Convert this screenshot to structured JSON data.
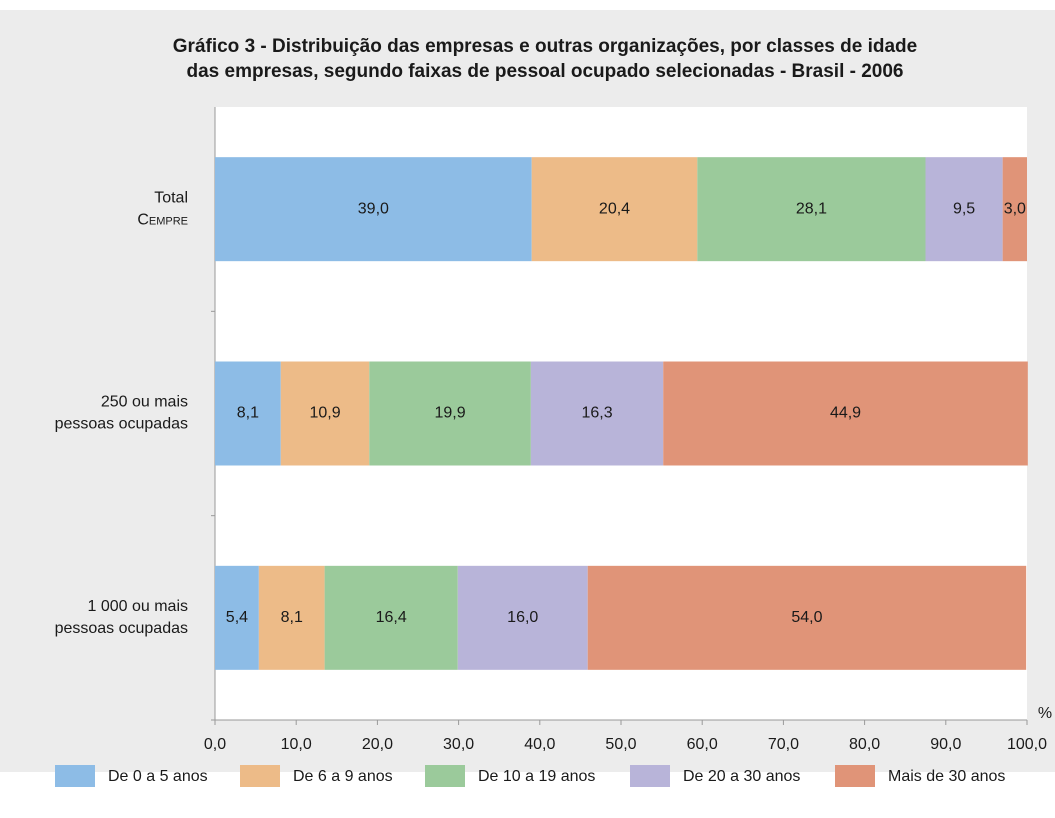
{
  "chart_data": {
    "type": "stacked-barh",
    "title": [
      "Gráfico 3 - Distribuição das empresas e outras organizações, por classes de idade",
      "das empresas, segundo faixas de pessoal ocupado selecionadas - Brasil - 2006"
    ],
    "categories": [
      [
        "Total",
        "Cempre"
      ],
      [
        "250  ou mais",
        "pessoas ocupadas"
      ],
      [
        "1 000  ou mais",
        "pessoas ocupadas"
      ]
    ],
    "series": [
      {
        "name": "De 0 a 5 anos",
        "color": "#8dbce6",
        "values": [
          39.0,
          8.1,
          5.4
        ],
        "value_labels": [
          "39,0",
          "8,1",
          "5,4"
        ]
      },
      {
        "name": "De 6 a 9 anos",
        "color": "#edbb88",
        "values": [
          20.4,
          10.9,
          8.1
        ],
        "value_labels": [
          "20,4",
          "10,9",
          "8,1"
        ]
      },
      {
        "name": "De 10 a 19 anos",
        "color": "#9bca9b",
        "values": [
          28.1,
          19.9,
          16.4
        ],
        "value_labels": [
          "28,1",
          "19,9",
          "16,4"
        ]
      },
      {
        "name": "De 20 a 30 anos",
        "color": "#b8b4d9",
        "values": [
          9.5,
          16.3,
          16.0
        ],
        "value_labels": [
          "9,5",
          "16,3",
          "16,0"
        ]
      },
      {
        "name": "Mais de 30 anos",
        "color": "#e09478",
        "values": [
          3.0,
          44.9,
          54.0
        ],
        "value_labels": [
          "3,0",
          "44,9",
          "54,0"
        ]
      }
    ],
    "xlabel": "%",
    "xlim": [
      0,
      100
    ],
    "xticks": [
      {
        "value": 0,
        "label": "0,0"
      },
      {
        "value": 10,
        "label": "10,0"
      },
      {
        "value": 20,
        "label": "20,0"
      },
      {
        "value": 30,
        "label": "30,0"
      },
      {
        "value": 40,
        "label": "40,0"
      },
      {
        "value": 50,
        "label": "50,0"
      },
      {
        "value": 60,
        "label": "60,0"
      },
      {
        "value": 70,
        "label": "70,0"
      },
      {
        "value": 80,
        "label": "80,0"
      },
      {
        "value": 90,
        "label": "90,0"
      },
      {
        "value": 100,
        "label": "100,0"
      }
    ]
  }
}
